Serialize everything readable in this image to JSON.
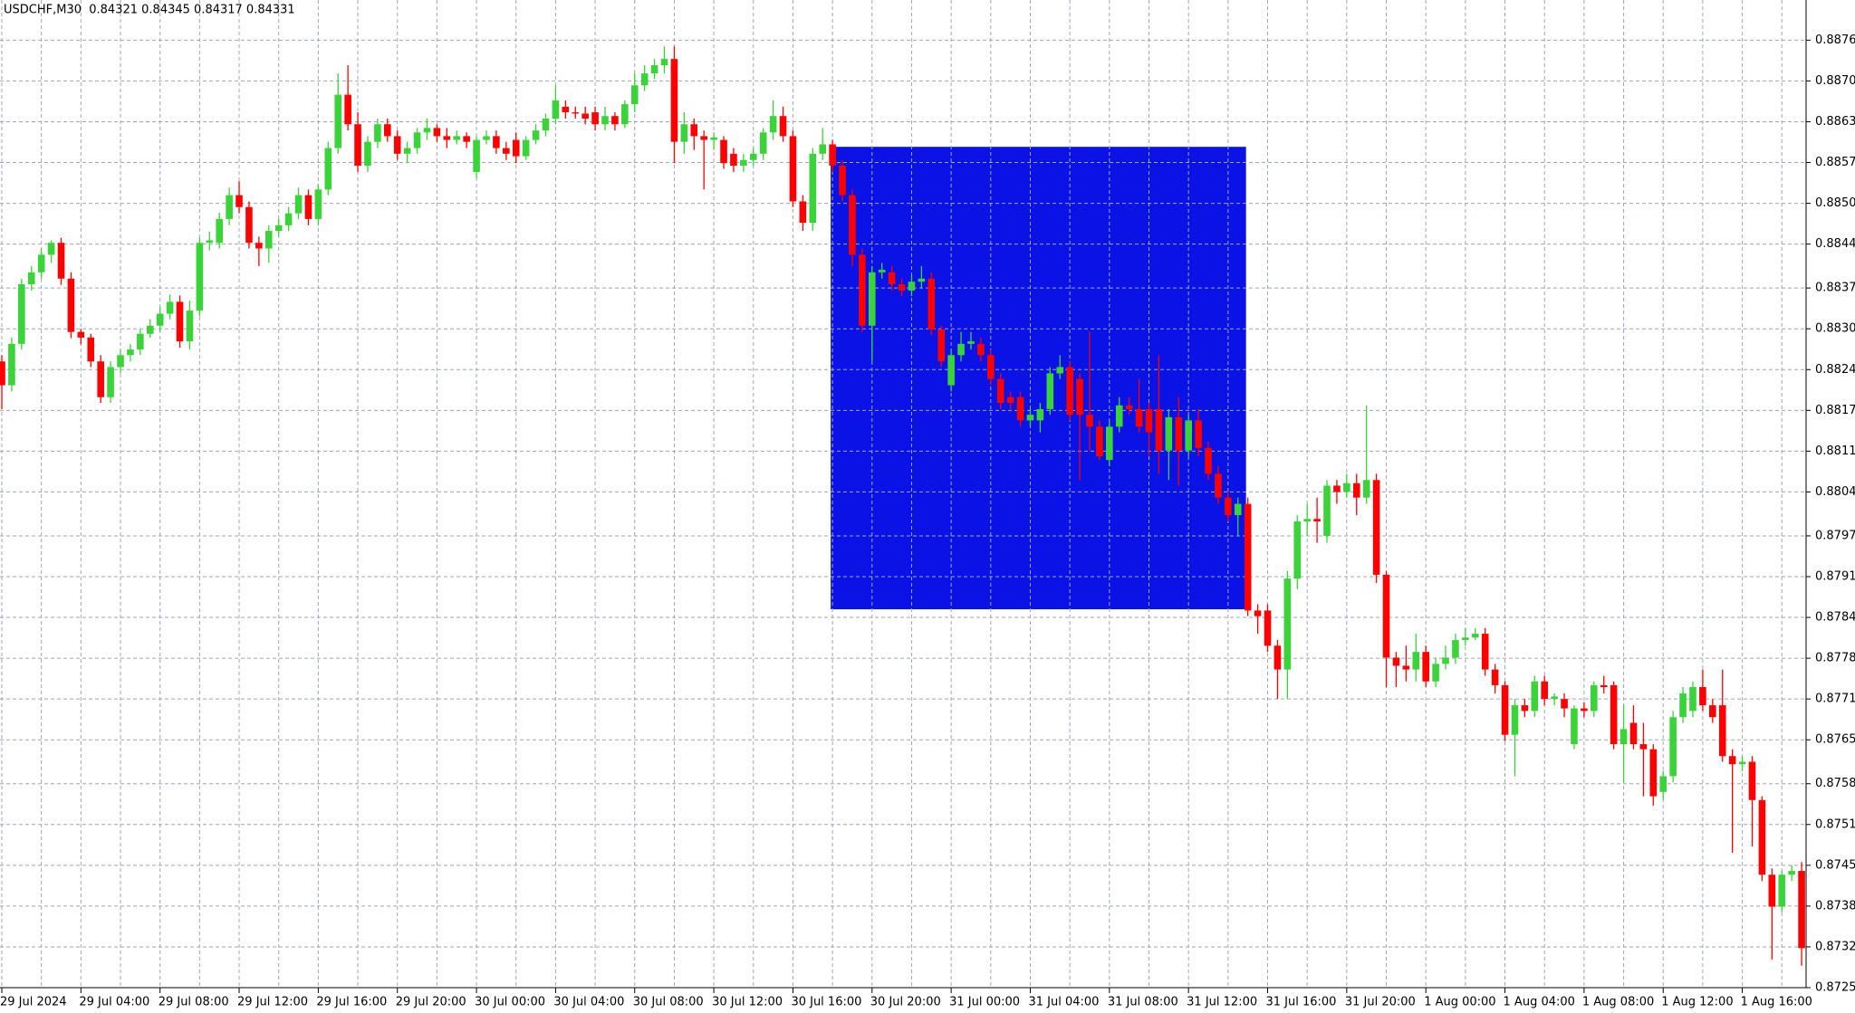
{
  "chart_data": {
    "type": "candlestick",
    "title": "USDCHF,M30  0.84321 0.84345 0.84317 0.84331",
    "categories": [
      "29 Jul 2024",
      null,
      null,
      null,
      null,
      null,
      null,
      null,
      "29 Jul 04:00",
      null,
      null,
      null,
      null,
      null,
      null,
      null,
      "29 Jul 08:00",
      null,
      null,
      null,
      null,
      null,
      null,
      null,
      "29 Jul 12:00",
      null,
      null,
      null,
      null,
      null,
      null,
      null,
      "29 Jul 16:00",
      null,
      null,
      null,
      null,
      null,
      null,
      null,
      "29 Jul 20:00",
      null,
      null,
      null,
      null,
      null,
      null,
      null,
      "30 Jul 00:00",
      null,
      null,
      null,
      null,
      null,
      null,
      null,
      "30 Jul 04:00",
      null,
      null,
      null,
      null,
      null,
      null,
      null,
      "30 Jul 08:00",
      null,
      null,
      null,
      null,
      null,
      null,
      null,
      "30 Jul 12:00",
      null,
      null,
      null,
      null,
      null,
      null,
      null,
      "30 Jul 16:00",
      null,
      null,
      null,
      null,
      null,
      null,
      null,
      "30 Jul 20:00",
      null,
      null,
      null,
      null,
      null,
      null,
      null,
      "31 Jul 00:00",
      null,
      null,
      null,
      null,
      null,
      null,
      null,
      "31 Jul 04:00",
      null,
      null,
      null,
      null,
      null,
      null,
      null,
      "31 Jul 08:00",
      null,
      null,
      null,
      null,
      null,
      null,
      null,
      "31 Jul 12:00",
      null,
      null,
      null,
      null,
      null,
      null,
      null,
      "31 Jul 16:00",
      null,
      null,
      null,
      null,
      null,
      null,
      null,
      "31 Jul 20:00",
      null,
      null,
      null,
      null,
      null,
      null,
      null,
      "1 Aug 00:00",
      null,
      null,
      null,
      null,
      null,
      null,
      null,
      "1 Aug 04:00",
      null,
      null,
      null,
      null,
      null,
      null,
      null,
      "1 Aug 08:00",
      null,
      null,
      null,
      null,
      null,
      null,
      null,
      "1 Aug 12:00",
      null,
      null,
      null,
      null,
      null,
      null,
      null,
      "1 Aug 16:00",
      null,
      null,
      null,
      null,
      null,
      null
    ],
    "open": [
      0.88253,
      0.88215,
      0.88281,
      0.88376,
      0.88395,
      0.88423,
      0.88442,
      0.88385,
      0.883,
      0.88291,
      0.88253,
      0.88196,
      0.88244,
      0.88263,
      0.88272,
      0.88297,
      0.8831,
      0.88329,
      0.88348,
      0.88285,
      0.88334,
      0.88442,
      0.88442,
      0.8848,
      0.88518,
      0.88499,
      0.88442,
      0.88433,
      0.88461,
      0.8847,
      0.88489,
      0.88518,
      0.8848,
      0.88527,
      0.88593,
      0.88678,
      0.88631,
      0.88565,
      0.88603,
      0.88631,
      0.88612,
      0.88584,
      0.88593,
      0.88618,
      0.88625,
      0.88612,
      0.88606,
      0.88612,
      0.88555,
      0.88606,
      0.88612,
      0.88593,
      0.88606,
      0.8858,
      0.88606,
      0.88621,
      0.8864,
      0.88659,
      0.8865,
      0.88648,
      0.8865,
      0.88631,
      0.88644,
      0.88631,
      0.88663,
      0.88693,
      0.88712,
      0.88725,
      0.88735,
      0.88603,
      0.88631,
      0.88612,
      0.88606,
      0.88606,
      0.88584,
      0.88565,
      0.88574,
      0.88584,
      0.88618,
      0.88644,
      0.88612,
      0.88508,
      0.88474,
      0.88584,
      0.88599,
      0.88565,
      0.88518,
      0.88423,
      0.8831,
      0.88395,
      0.88395,
      0.88376,
      0.88366,
      0.8838,
      0.88385,
      0.88304,
      0.88215,
      0.88263,
      0.88281,
      0.88281,
      0.88263,
      0.88225,
      0.88196,
      0.88196,
      0.88159,
      0.88159,
      0.88177,
      0.88234,
      0.88244,
      0.88225,
      0.88168,
      0.88149,
      0.88096,
      0.88149,
      0.88183,
      0.88177,
      0.88177,
      0.88177,
      0.88111,
      0.88164,
      0.88111,
      0.88159,
      0.88115,
      0.88074,
      0.88036,
      0.88008,
      0.88026,
      0.87856,
      0.87856,
      0.878,
      0.87762,
      0.87907,
      0.87998,
      0.88002,
      0.87975,
      0.88055,
      0.88045,
      0.88059,
      0.88036,
      0.88064,
      0.87913,
      0.87781,
      0.87768,
      0.87762,
      0.8779,
      0.87743,
      0.87771,
      0.87781,
      0.87809,
      0.87813,
      0.87819,
      0.87762,
      0.87737,
      0.87658,
      0.87705,
      0.87696,
      0.87743,
      0.87715,
      0.87715,
      0.87643,
      0.877,
      0.87696,
      0.87737,
      0.87737,
      0.87643,
      0.87677,
      0.87643,
      0.87635,
      0.87567,
      0.87592,
      0.87686,
      0.87696,
      0.87734,
      0.87705,
      0.87705,
      0.87624,
      0.87611,
      0.87615,
      0.87554,
      0.87435,
      0.87384,
      0.87435,
      0.87441
    ],
    "high": [
      0.88263,
      0.88291,
      0.88385,
      0.88405,
      0.88433,
      0.88446,
      0.8845,
      0.88395,
      0.88305,
      0.88297,
      0.88263,
      0.88253,
      0.88272,
      0.88281,
      0.88304,
      0.8832,
      0.8834,
      0.8836,
      0.88358,
      0.8835,
      0.8845,
      0.8846,
      0.8849,
      0.8853,
      0.8854,
      0.88508,
      0.88452,
      0.8847,
      0.8848,
      0.88499,
      0.8853,
      0.88527,
      0.88535,
      0.88603,
      0.88712,
      0.88725,
      0.8865,
      0.88612,
      0.8864,
      0.8864,
      0.88621,
      0.88603,
      0.88625,
      0.8864,
      0.88631,
      0.88625,
      0.88621,
      0.88618,
      0.88612,
      0.88621,
      0.88621,
      0.88603,
      0.88618,
      0.88612,
      0.88631,
      0.88648,
      0.88693,
      0.88669,
      0.88659,
      0.88659,
      0.88659,
      0.88659,
      0.8865,
      0.88669,
      0.88712,
      0.88725,
      0.88735,
      0.88755,
      0.88755,
      0.8865,
      0.8864,
      0.88621,
      0.88618,
      0.88612,
      0.88593,
      0.88584,
      0.88593,
      0.88625,
      0.88669,
      0.88659,
      0.88621,
      0.88518,
      0.88593,
      0.88625,
      0.88606,
      0.88574,
      0.88527,
      0.88433,
      0.88405,
      0.8841,
      0.88405,
      0.88385,
      0.8839,
      0.88405,
      0.88395,
      0.8831,
      0.88272,
      0.883,
      0.883,
      0.88291,
      0.88272,
      0.88234,
      0.88205,
      0.88205,
      0.88177,
      0.88187,
      0.88244,
      0.88263,
      0.88253,
      0.88234,
      0.883,
      0.88159,
      0.88159,
      0.88196,
      0.88196,
      0.88225,
      0.88187,
      0.88263,
      0.88177,
      0.88196,
      0.88168,
      0.88177,
      0.88125,
      0.88086,
      0.88045,
      0.88036,
      0.88036,
      0.87866,
      0.87866,
      0.87809,
      0.87919,
      0.88008,
      0.88026,
      0.88036,
      0.88064,
      0.88064,
      0.88074,
      0.88074,
      0.88183,
      0.88074,
      0.87919,
      0.8779,
      0.878,
      0.87819,
      0.878,
      0.87781,
      0.878,
      0.87819,
      0.87828,
      0.87828,
      0.87828,
      0.87771,
      0.87743,
      0.87715,
      0.87715,
      0.87752,
      0.87752,
      0.87724,
      0.87724,
      0.87705,
      0.8771,
      0.87743,
      0.87752,
      0.87743,
      0.87705,
      0.87705,
      0.87677,
      0.87643,
      0.876,
      0.87696,
      0.87734,
      0.87743,
      0.87762,
      0.87715,
      0.87762,
      0.87635,
      0.87624,
      0.87624,
      0.8756,
      0.87445,
      0.87441,
      0.8745,
      0.87455
    ],
    "low": [
      0.88177,
      0.88205,
      0.88272,
      0.88366,
      0.88385,
      0.8841,
      0.88375,
      0.8829,
      0.8828,
      0.88244,
      0.88187,
      0.88187,
      0.88234,
      0.88253,
      0.88263,
      0.88291,
      0.883,
      0.8832,
      0.88275,
      0.88272,
      0.88325,
      0.8843,
      0.88433,
      0.8847,
      0.88489,
      0.88433,
      0.88405,
      0.8841,
      0.88452,
      0.88461,
      0.8848,
      0.8847,
      0.8847,
      0.88518,
      0.88584,
      0.88621,
      0.88555,
      0.88555,
      0.88593,
      0.88603,
      0.88574,
      0.88569,
      0.88584,
      0.88606,
      0.88603,
      0.88593,
      0.88599,
      0.88593,
      0.88545,
      0.88599,
      0.88584,
      0.88574,
      0.88569,
      0.88574,
      0.88599,
      0.88612,
      0.88631,
      0.8864,
      0.8864,
      0.88631,
      0.88621,
      0.88621,
      0.88621,
      0.88625,
      0.8865,
      0.88684,
      0.88703,
      0.88712,
      0.88569,
      0.88584,
      0.8859,
      0.88527,
      0.8859,
      0.8856,
      0.88555,
      0.88555,
      0.88565,
      0.88574,
      0.88606,
      0.88603,
      0.88499,
      0.88461,
      0.88461,
      0.88574,
      0.88555,
      0.88508,
      0.88405,
      0.883,
      0.88253,
      0.88385,
      0.88366,
      0.88357,
      0.88357,
      0.8837,
      0.88295,
      0.88244,
      0.88205,
      0.88253,
      0.88272,
      0.88253,
      0.88215,
      0.88177,
      0.88177,
      0.88149,
      0.88149,
      0.8814,
      0.88168,
      0.88225,
      0.88159,
      0.88064,
      0.88111,
      0.88096,
      0.88086,
      0.8814,
      0.88168,
      0.8814,
      0.88102,
      0.88074,
      0.88064,
      0.88055,
      0.88102,
      0.88102,
      0.88064,
      0.88026,
      0.87998,
      0.87975,
      0.87847,
      0.87819,
      0.8779,
      0.87715,
      0.87715,
      0.8789,
      0.87975,
      0.87964,
      0.87964,
      0.88026,
      0.88036,
      0.88008,
      0.88026,
      0.879,
      0.87734,
      0.87734,
      0.87743,
      0.87743,
      0.87734,
      0.87734,
      0.87762,
      0.87771,
      0.878,
      0.87809,
      0.87752,
      0.87724,
      0.87648,
      0.87592,
      0.87686,
      0.87686,
      0.87705,
      0.87705,
      0.87686,
      0.87635,
      0.87686,
      0.87686,
      0.87724,
      0.87635,
      0.87582,
      0.87635,
      0.8756,
      0.87545,
      0.87554,
      0.87582,
      0.87677,
      0.87686,
      0.87696,
      0.87677,
      0.87615,
      0.8747,
      0.876,
      0.8748,
      0.87425,
      0.873,
      0.87375,
      0.87425,
      0.8729
    ],
    "close": [
      0.88215,
      0.88281,
      0.88376,
      0.88395,
      0.88423,
      0.88442,
      0.88385,
      0.883,
      0.88291,
      0.88253,
      0.88196,
      0.88244,
      0.88263,
      0.88272,
      0.88297,
      0.8831,
      0.88329,
      0.88348,
      0.88285,
      0.88334,
      0.88442,
      0.88446,
      0.8848,
      0.88518,
      0.88499,
      0.88442,
      0.88433,
      0.88461,
      0.8847,
      0.88489,
      0.88518,
      0.8848,
      0.88527,
      0.88593,
      0.88678,
      0.88631,
      0.88565,
      0.88603,
      0.88631,
      0.88612,
      0.88584,
      0.88593,
      0.88618,
      0.88625,
      0.88612,
      0.88606,
      0.88612,
      0.88603,
      0.88606,
      0.88612,
      0.88593,
      0.88584,
      0.8858,
      0.88606,
      0.88621,
      0.8864,
      0.88669,
      0.8865,
      0.88648,
      0.8864,
      0.88631,
      0.88644,
      0.88631,
      0.88663,
      0.88693,
      0.88712,
      0.88725,
      0.88735,
      0.88603,
      0.88631,
      0.88612,
      0.88606,
      0.8861,
      0.88569,
      0.88565,
      0.88574,
      0.88584,
      0.88618,
      0.88644,
      0.88612,
      0.88508,
      0.88474,
      0.88584,
      0.88599,
      0.88565,
      0.88518,
      0.88423,
      0.8831,
      0.88395,
      0.88399,
      0.88376,
      0.88366,
      0.8838,
      0.88385,
      0.88304,
      0.88253,
      0.88263,
      0.88281,
      0.88285,
      0.88263,
      0.88225,
      0.88187,
      0.88187,
      0.88159,
      0.88168,
      0.88177,
      0.88234,
      0.88244,
      0.88168,
      0.88168,
      0.88149,
      0.88102,
      0.88149,
      0.88183,
      0.88177,
      0.88149,
      0.8814,
      0.88111,
      0.88164,
      0.88111,
      0.88159,
      0.88115,
      0.88074,
      0.88036,
      0.88008,
      0.88026,
      0.87856,
      0.87847,
      0.878,
      0.87762,
      0.87907,
      0.87998,
      0.88002,
      0.87998,
      0.88055,
      0.88045,
      0.88059,
      0.88036,
      0.88064,
      0.87913,
      0.87781,
      0.87768,
      0.87762,
      0.8779,
      0.87743,
      0.87771,
      0.87781,
      0.87809,
      0.87813,
      0.87819,
      0.87762,
      0.87737,
      0.87658,
      0.87705,
      0.87696,
      0.87743,
      0.87715,
      0.87719,
      0.877,
      0.877,
      0.87696,
      0.87737,
      0.87734,
      0.87643,
      0.87667,
      0.87643,
      0.87635,
      0.8756,
      0.87592,
      0.87686,
      0.87724,
      0.87734,
      0.87705,
      0.87686,
      0.87624,
      0.87611,
      0.87615,
      0.87554,
      0.87435,
      0.87384,
      0.87435,
      0.87441,
      0.87318
    ],
    "up_color": "#3ad33a",
    "down_color": "#ff0000",
    "ylim": [
      0.87255,
      0.88829
    ],
    "yticks": [
      0.88765,
      {
        "value": 0.887,
        "label": "0.88700"
      },
      0.88635,
      {
        "value": 0.8857,
        "label": "0.88570"
      },
      0.88505,
      {
        "value": 0.8844,
        "label": "0.88440"
      },
      {
        "value": 0.8837,
        "label": "0.88370"
      },
      0.88305,
      {
        "value": 0.8824,
        "label": "0.88240"
      },
      0.88175,
      {
        "value": 0.8811,
        "label": "0.88110"
      },
      0.88045,
      0.87975,
      {
        "value": 0.8791,
        "label": "0.87910"
      },
      0.87845,
      {
        "value": 0.8778,
        "label": "0.87780"
      },
      0.87715,
      {
        "value": 0.8765,
        "label": "0.87650"
      },
      {
        "value": 0.8758,
        "label": "0.87580"
      },
      0.87515,
      {
        "value": 0.8745,
        "label": "0.87450"
      },
      0.87385,
      {
        "value": 0.8732,
        "label": "0.87320"
      },
      0.87255
    ],
    "grid": true,
    "grid_color": "#9ea6b8",
    "rectangle": {
      "from": 84,
      "to": 126,
      "top": 0.88595,
      "bottom": 0.87858,
      "color": "#0a12e6"
    }
  }
}
